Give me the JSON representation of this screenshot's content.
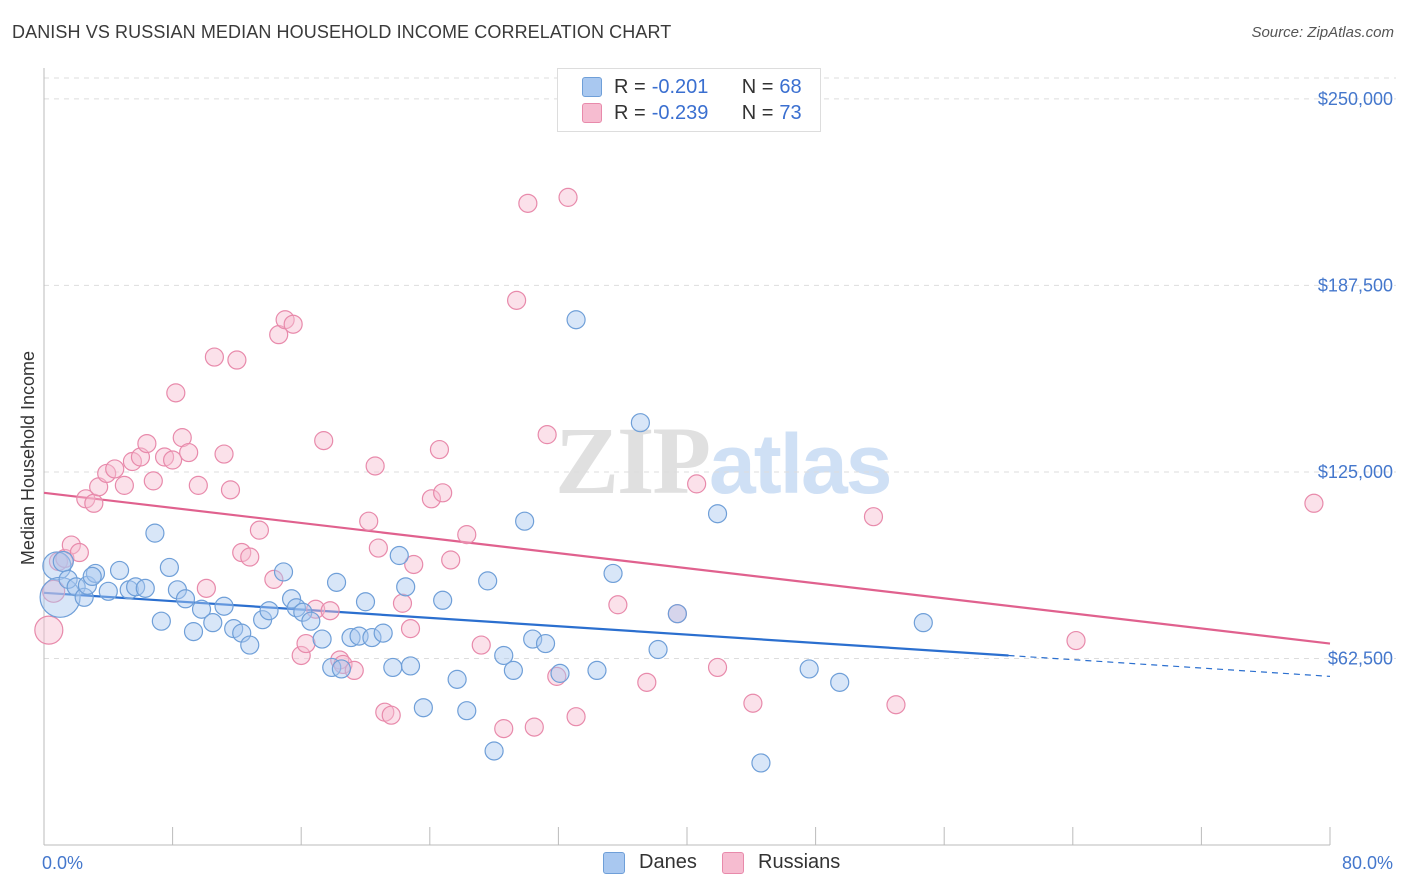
{
  "title": "DANISH VS RUSSIAN MEDIAN HOUSEHOLD INCOME CORRELATION CHART",
  "source": "Source: ZipAtlas.com",
  "watermark": {
    "zip": "ZIP",
    "atlas": "atlas"
  },
  "legend": {
    "rows": [
      {
        "r_label": "R =",
        "r_value": "-0.201",
        "n_label": "N =",
        "n_value": "68"
      },
      {
        "r_label": "R =",
        "r_value": "-0.239",
        "n_label": "N =",
        "n_value": "73"
      }
    ]
  },
  "bottom_legend": [
    "Danes",
    "Russians"
  ],
  "colors": {
    "danes_fill": "#a9c8f0",
    "danes_stroke": "#6f9fd8",
    "danes_line": "#2b6fcf",
    "russians_fill": "#f6bcd0",
    "russians_stroke": "#e88aab",
    "russians_line": "#e0618e",
    "tick_text": "#4477cc",
    "grid": "#dddddd"
  },
  "chart_data": {
    "type": "scatter",
    "title": "DANISH VS RUSSIAN MEDIAN HOUSEHOLD INCOME CORRELATION CHART",
    "xlabel": "",
    "ylabel": "Median Household Income",
    "xlim": [
      0,
      80
    ],
    "ylim": [
      0,
      257000
    ],
    "x_tick_labels": [
      "0.0%",
      "80.0%"
    ],
    "y_ticks": [
      62500,
      125000,
      187500,
      250000
    ],
    "y_tick_labels": [
      "$62,500",
      "$125,000",
      "$187,500",
      "$250,000"
    ],
    "grid": true,
    "legend_placement": "top-center",
    "series": [
      {
        "name": "Danes",
        "r": -0.201,
        "n": 68,
        "trend": {
          "x0": 0,
          "y0": 84500,
          "x1": 60,
          "y1": 63500,
          "dashed_to_x": 80,
          "dashed_to_y": 56500
        },
        "points": [
          [
            0.8,
            93500,
            14
          ],
          [
            1.0,
            83000,
            20
          ],
          [
            1.2,
            95000,
            10
          ],
          [
            1.5,
            89000,
            9
          ],
          [
            2.0,
            86500,
            9
          ],
          [
            2.5,
            83000,
            9
          ],
          [
            2.7,
            87000,
            9
          ],
          [
            3.2,
            91000,
            9
          ],
          [
            3.0,
            90000,
            9
          ],
          [
            4.0,
            85000,
            9
          ],
          [
            4.7,
            92000,
            9
          ],
          [
            5.3,
            85500,
            9
          ],
          [
            5.7,
            86500,
            9
          ],
          [
            6.3,
            86000,
            9
          ],
          [
            6.9,
            104500,
            9
          ],
          [
            7.3,
            75000,
            9
          ],
          [
            7.8,
            93000,
            9
          ],
          [
            8.3,
            85500,
            9
          ],
          [
            8.8,
            82500,
            9
          ],
          [
            9.3,
            71500,
            9
          ],
          [
            9.8,
            79000,
            9
          ],
          [
            10.5,
            74500,
            9
          ],
          [
            11.2,
            80000,
            9
          ],
          [
            11.8,
            72500,
            9
          ],
          [
            12.3,
            71000,
            9
          ],
          [
            12.8,
            67000,
            9
          ],
          [
            13.6,
            75500,
            9
          ],
          [
            14.0,
            78500,
            9
          ],
          [
            14.9,
            91500,
            9
          ],
          [
            15.4,
            82500,
            9
          ],
          [
            15.7,
            79500,
            9
          ],
          [
            16.1,
            78000,
            9
          ],
          [
            16.6,
            75000,
            9
          ],
          [
            17.3,
            69000,
            9
          ],
          [
            17.9,
            59500,
            9
          ],
          [
            18.2,
            88000,
            9
          ],
          [
            18.5,
            59000,
            9
          ],
          [
            19.1,
            69500,
            9
          ],
          [
            19.6,
            70000,
            9
          ],
          [
            20.0,
            81500,
            9
          ],
          [
            20.4,
            69500,
            9
          ],
          [
            21.1,
            71000,
            9
          ],
          [
            21.7,
            59500,
            9
          ],
          [
            22.1,
            97000,
            9
          ],
          [
            22.5,
            86500,
            9
          ],
          [
            22.8,
            60000,
            9
          ],
          [
            23.6,
            46000,
            9
          ],
          [
            24.8,
            82000,
            9
          ],
          [
            25.7,
            55500,
            9
          ],
          [
            26.3,
            45000,
            9
          ],
          [
            27.6,
            88500,
            9
          ],
          [
            28.0,
            31500,
            9
          ],
          [
            28.6,
            63500,
            9
          ],
          [
            29.2,
            58500,
            9
          ],
          [
            29.9,
            108500,
            9
          ],
          [
            30.4,
            69000,
            9
          ],
          [
            31.2,
            67500,
            9
          ],
          [
            32.1,
            57500,
            9
          ],
          [
            33.1,
            176000,
            9
          ],
          [
            34.4,
            58500,
            9
          ],
          [
            35.4,
            91000,
            9
          ],
          [
            37.1,
            141500,
            9
          ],
          [
            38.2,
            65500,
            9
          ],
          [
            39.4,
            77500,
            9
          ],
          [
            41.9,
            111000,
            9
          ],
          [
            44.6,
            27500,
            9
          ],
          [
            47.6,
            59000,
            9
          ],
          [
            49.5,
            54500,
            9
          ],
          [
            54.7,
            74500,
            9
          ]
        ]
      },
      {
        "name": "Russians",
        "r": -0.239,
        "n": 73,
        "trend": {
          "x0": 0,
          "y0": 118000,
          "x1": 80,
          "y1": 67500
        },
        "points": [
          [
            0.3,
            72000,
            14
          ],
          [
            0.6,
            85000,
            11
          ],
          [
            0.9,
            95000,
            9
          ],
          [
            1.3,
            96000,
            9
          ],
          [
            1.7,
            100500,
            9
          ],
          [
            2.2,
            98000,
            9
          ],
          [
            2.6,
            116000,
            9
          ],
          [
            3.1,
            114500,
            9
          ],
          [
            3.4,
            120000,
            9
          ],
          [
            3.9,
            124500,
            9
          ],
          [
            4.4,
            126000,
            9
          ],
          [
            5.0,
            120500,
            9
          ],
          [
            5.5,
            128500,
            9
          ],
          [
            6.0,
            130000,
            9
          ],
          [
            6.4,
            134500,
            9
          ],
          [
            6.8,
            122000,
            9
          ],
          [
            7.5,
            130000,
            9
          ],
          [
            8.0,
            129000,
            9
          ],
          [
            8.2,
            151500,
            9
          ],
          [
            8.6,
            136500,
            9
          ],
          [
            9.0,
            131500,
            9
          ],
          [
            9.6,
            120500,
            9
          ],
          [
            10.1,
            86000,
            9
          ],
          [
            10.6,
            163500,
            9
          ],
          [
            11.2,
            131000,
            9
          ],
          [
            11.6,
            119000,
            9
          ],
          [
            12.0,
            162500,
            9
          ],
          [
            12.3,
            98000,
            9
          ],
          [
            12.8,
            96500,
            9
          ],
          [
            13.4,
            105500,
            9
          ],
          [
            14.3,
            89000,
            9
          ],
          [
            14.6,
            171000,
            9
          ],
          [
            15.0,
            176000,
            9
          ],
          [
            15.5,
            174500,
            9
          ],
          [
            16.0,
            63500,
            9
          ],
          [
            16.3,
            67500,
            9
          ],
          [
            16.9,
            79000,
            9
          ],
          [
            17.4,
            135500,
            9
          ],
          [
            17.8,
            78500,
            9
          ],
          [
            18.4,
            62000,
            9
          ],
          [
            18.6,
            60500,
            9
          ],
          [
            19.3,
            58500,
            9
          ],
          [
            20.2,
            108500,
            9
          ],
          [
            20.6,
            127000,
            9
          ],
          [
            20.8,
            99500,
            9
          ],
          [
            21.2,
            44500,
            9
          ],
          [
            21.6,
            43500,
            9
          ],
          [
            22.3,
            81000,
            9
          ],
          [
            22.8,
            72500,
            9
          ],
          [
            23.0,
            94000,
            9
          ],
          [
            24.1,
            116000,
            9
          ],
          [
            24.8,
            118000,
            9
          ],
          [
            24.6,
            132500,
            9
          ],
          [
            25.3,
            95500,
            9
          ],
          [
            26.3,
            104000,
            9
          ],
          [
            27.2,
            67000,
            9
          ],
          [
            28.6,
            39000,
            9
          ],
          [
            29.4,
            182500,
            9
          ],
          [
            30.1,
            215000,
            9
          ],
          [
            30.5,
            39500,
            9
          ],
          [
            31.3,
            137500,
            9
          ],
          [
            31.9,
            56500,
            9
          ],
          [
            32.6,
            217000,
            9
          ],
          [
            33.1,
            43000,
            9
          ],
          [
            35.7,
            80500,
            9
          ],
          [
            37.5,
            54500,
            9
          ],
          [
            39.4,
            77500,
            9
          ],
          [
            40.6,
            121000,
            9
          ],
          [
            41.9,
            59500,
            9
          ],
          [
            44.1,
            47500,
            9
          ],
          [
            51.6,
            110000,
            9
          ],
          [
            53.0,
            47000,
            9
          ],
          [
            64.2,
            68500,
            9
          ],
          [
            79.0,
            114500,
            9
          ]
        ]
      }
    ]
  }
}
